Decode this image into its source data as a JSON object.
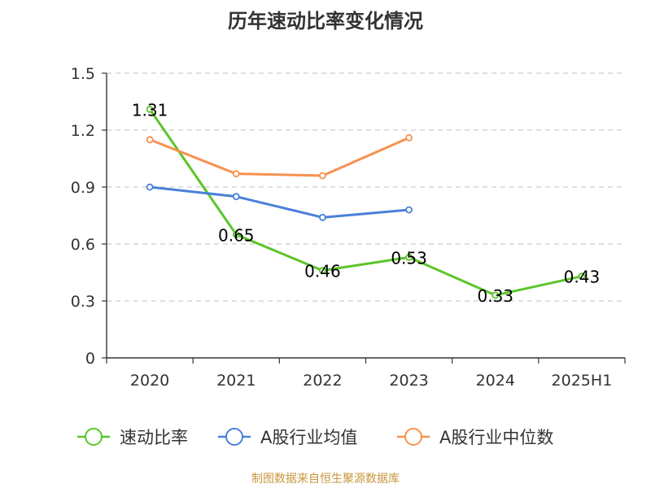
{
  "chart_data": {
    "type": "line",
    "title": "历年速动比率变化情况",
    "categories": [
      "2020",
      "2021",
      "2022",
      "2023",
      "2024",
      "2025H1"
    ],
    "yticks": [
      "0",
      "0.3",
      "0.6",
      "0.9",
      "1.2",
      "1.5"
    ],
    "ylim": [
      0,
      1.5
    ],
    "grid": true,
    "legend_position": "bottom",
    "series": [
      {
        "name": "速动比率",
        "color": "#5cc52a",
        "values": [
          1.31,
          0.65,
          0.46,
          0.53,
          0.33,
          0.43
        ],
        "labels": [
          "1.31",
          "0.65",
          "0.46",
          "0.53",
          "0.33",
          "0.43"
        ]
      },
      {
        "name": "A股行业均值",
        "color": "#4a80d9",
        "values": [
          0.9,
          0.85,
          0.74,
          0.78,
          null,
          null
        ]
      },
      {
        "name": "A股行业中位数",
        "color": "#f89150",
        "values": [
          1.15,
          0.97,
          0.96,
          1.16,
          null,
          null
        ]
      }
    ]
  },
  "footer": "制图数据来自恒生聚源数据库"
}
